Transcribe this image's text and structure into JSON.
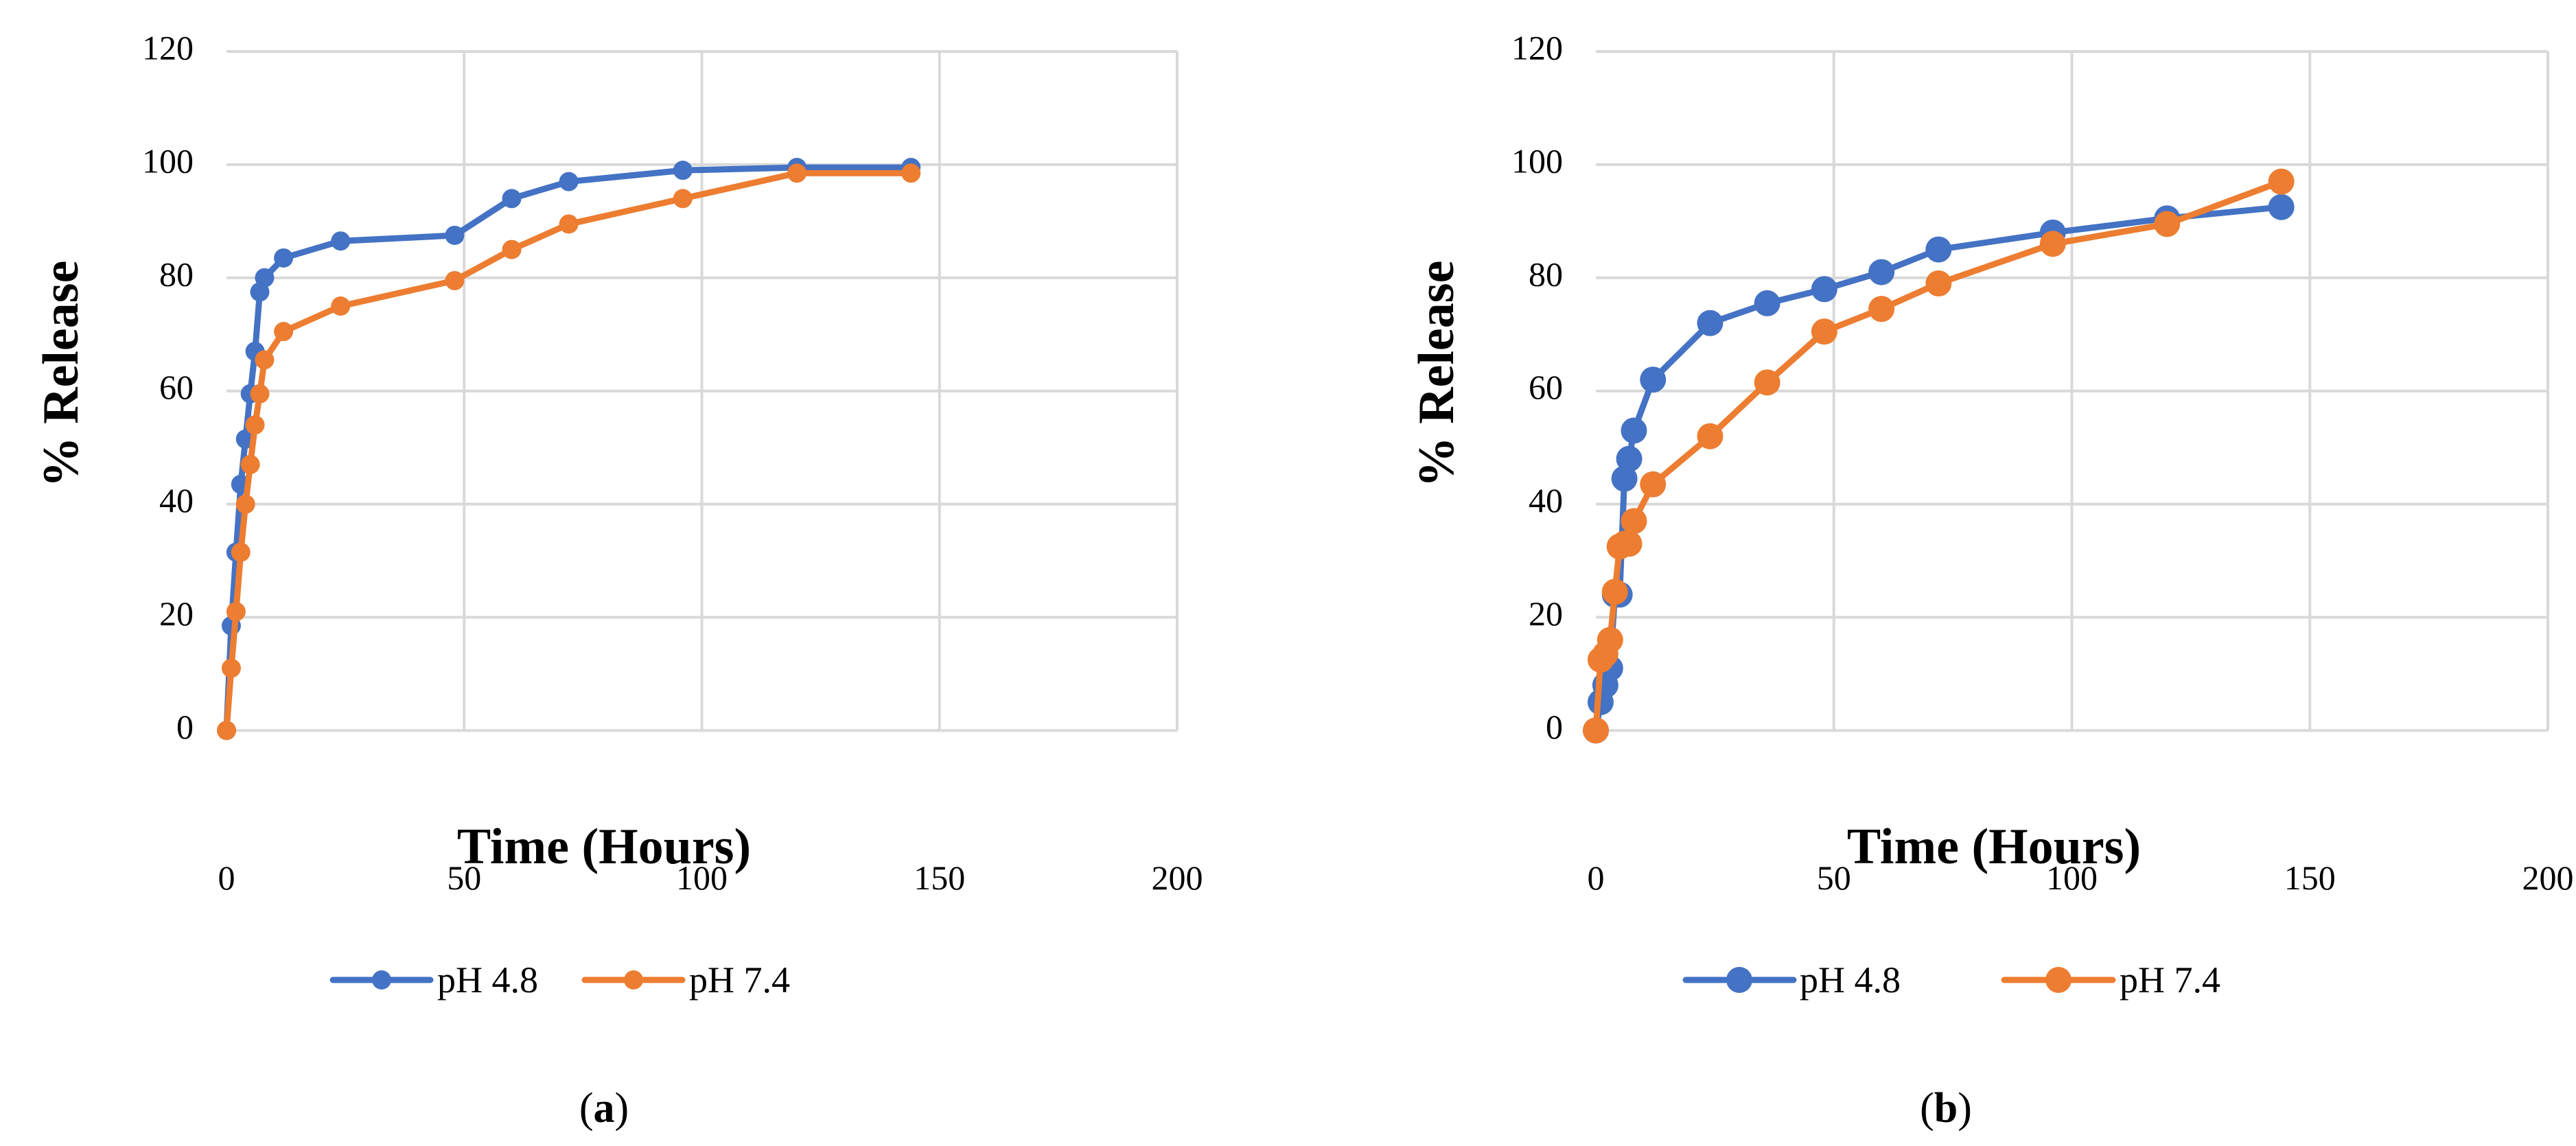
{
  "colors": {
    "series_a": "#4472c4",
    "series_b": "#ed7d31",
    "grid": "#d9d9d9",
    "text": "#000000"
  },
  "chart_data": [
    {
      "type": "line",
      "panel_label": {
        "open": "(",
        "letter": "a",
        "close": ")"
      },
      "title": "",
      "xlabel": "Time (Hours)",
      "ylabel": "% Release",
      "xlim": [
        0,
        200
      ],
      "ylim": [
        0,
        120
      ],
      "xticks": [
        0,
        50,
        100,
        150,
        200
      ],
      "yticks": [
        0,
        20,
        40,
        60,
        80,
        100,
        120
      ],
      "grid": true,
      "legend": "bottom",
      "series": [
        {
          "name": "pH 4.8",
          "color": "#4472c4",
          "x": [
            0,
            1,
            2,
            3,
            4,
            5,
            6,
            7,
            8,
            12,
            24,
            48,
            60,
            72,
            96,
            120,
            144
          ],
          "y": [
            0,
            18.5,
            31.5,
            43.5,
            51.5,
            59.5,
            67,
            77.5,
            80,
            83.5,
            86.5,
            87.5,
            94,
            97,
            99,
            99.5,
            99.5
          ]
        },
        {
          "name": "pH 7.4",
          "color": "#ed7d31",
          "x": [
            0,
            1,
            2,
            3,
            4,
            5,
            6,
            7,
            8,
            12,
            24,
            48,
            60,
            72,
            96,
            120,
            144
          ],
          "y": [
            0,
            11,
            21,
            31.5,
            40,
            47,
            54,
            59.5,
            65.5,
            70.5,
            75,
            79.5,
            85,
            89.5,
            94,
            98.5,
            98.5
          ]
        }
      ]
    },
    {
      "type": "line",
      "panel_label": {
        "open": "(",
        "letter": "b",
        "close": ")"
      },
      "title": "",
      "xlabel": "Time (Hours)",
      "ylabel": "% Release",
      "xlim": [
        0,
        200
      ],
      "ylim": [
        0,
        120
      ],
      "xticks": [
        0,
        50,
        100,
        150,
        200
      ],
      "yticks": [
        0,
        20,
        40,
        60,
        80,
        100,
        120
      ],
      "grid": true,
      "legend": "bottom",
      "series": [
        {
          "name": "pH 4.8",
          "color": "#4472c4",
          "x": [
            0,
            1,
            2,
            3,
            4,
            5,
            6,
            7,
            8,
            12,
            24,
            36,
            48,
            60,
            72,
            96,
            120,
            144
          ],
          "y": [
            0,
            5,
            8,
            11,
            24,
            24,
            44.5,
            48,
            53,
            62,
            72,
            75.5,
            78,
            81,
            85,
            88,
            90.5,
            92.5
          ]
        },
        {
          "name": "pH 7.4",
          "color": "#ed7d31",
          "x": [
            0,
            1,
            2,
            3,
            4,
            5,
            6,
            7,
            8,
            12,
            24,
            36,
            48,
            60,
            72,
            96,
            120,
            144
          ],
          "y": [
            0,
            12.5,
            13.5,
            16,
            24.5,
            32.5,
            33,
            33,
            37,
            43.5,
            52,
            61.5,
            70.5,
            74.5,
            79,
            86,
            89.5,
            97
          ]
        }
      ]
    }
  ]
}
